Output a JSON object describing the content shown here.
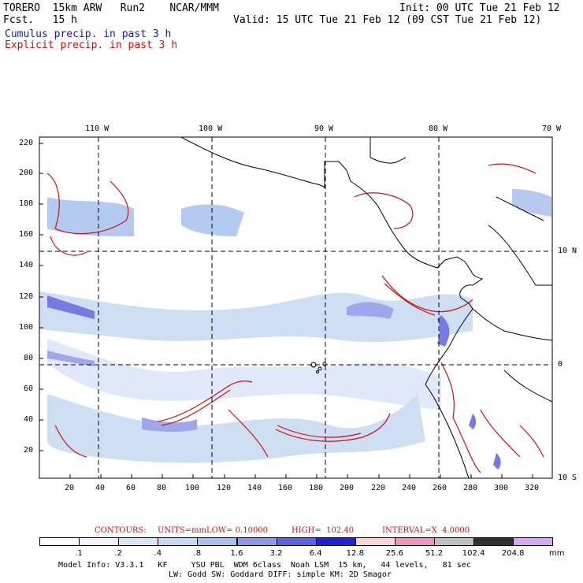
{
  "header": {
    "model_line": "TORERO  15km ARW   Run2    NCAR/MMM",
    "fcst_line": "Fcst.   15 h",
    "init_line": "Init: 00 UTC Tue 21 Feb 12",
    "valid_line": "Valid: 15 UTC Tue 21 Feb 12 (09 CST Tue 21 Feb 12)",
    "legend_cumulus": "Cumulus precip. in past 3 h",
    "legend_explicit": "Explicit precip. in past 3 h"
  },
  "colors": {
    "cumulus": "#1a1aa0",
    "explicit": "#d01010"
  },
  "map": {
    "lon_labels": [
      "110 W",
      "100 W",
      "90 W",
      "80 W",
      "70 W"
    ],
    "lat_labels": [
      "10 N",
      "0",
      "10 S"
    ],
    "y_ticks": [
      "220",
      "200",
      "180",
      "160",
      "140",
      "120",
      "100",
      "80",
      "60",
      "40",
      "20"
    ],
    "x_ticks": [
      "20",
      "40",
      "60",
      "80",
      "100",
      "120",
      "140",
      "160",
      "180",
      "200",
      "220",
      "240",
      "260",
      "280",
      "300",
      "320"
    ]
  },
  "contour_info": {
    "contours": "CONTOURS:",
    "units": "UNITS=mm",
    "low": "LOW= 0.10000",
    "high": "HIGH=  102.40",
    "interval": "INTERVAL=X  4.0000"
  },
  "colorbar": {
    "labels": [
      ".1",
      ".2",
      ".4",
      ".8",
      "1.6",
      "3.2",
      "6.4",
      "12.8",
      "25.6",
      "51.2",
      "102.4",
      "204.8"
    ],
    "colors": [
      "#ffffff",
      "#f2f4ff",
      "#dbe5f8",
      "#c6d9f2",
      "#a9c1ee",
      "#8e98e8",
      "#5d63e0",
      "#2020d8",
      "#f7d5d8",
      "#ee94c0",
      "#c0c0c0",
      "#303030",
      "#d8a8f0"
    ],
    "unit": "mm"
  },
  "footer": {
    "line1": "Model Info: V3.3.1   KF     YSU PBL  WDM 6class  Noah LSM  15 km,   44 levels,   81 sec",
    "line2": "LW: Godd SW: Goddard DIFF: simple KM: 2D Smagor"
  }
}
